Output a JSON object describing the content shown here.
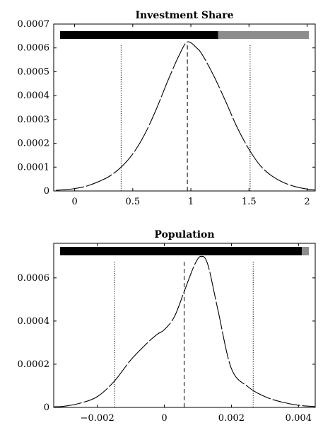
{
  "chart_data": [
    {
      "type": "line",
      "title": "Investment Share",
      "xlabel": "",
      "ylabel": "",
      "xlim": [
        -0.18,
        2.07
      ],
      "ylim": [
        0,
        0.0007
      ],
      "x_ticks": [
        0,
        0.5,
        1,
        1.5,
        2
      ],
      "x_tick_labels": [
        "0",
        "0.5",
        "1",
        "1.5",
        "2"
      ],
      "y_ticks": [
        0,
        0.0001,
        0.0002,
        0.0003,
        0.0004,
        0.0005,
        0.0006,
        0.0007
      ],
      "y_tick_labels": [
        "0",
        "0.0001",
        "0.0002",
        "0.0003",
        "0.0004",
        "0.0005",
        "0.0006",
        "0.0007"
      ],
      "grid": false,
      "series": [
        {
          "line_style": "long-dash",
          "x": [
            -0.16,
            -0.1,
            0.0,
            0.1,
            0.2,
            0.3,
            0.4,
            0.5,
            0.6,
            0.7,
            0.8,
            0.9,
            0.97,
            1.05,
            1.1,
            1.2,
            1.3,
            1.4,
            1.5,
            1.6,
            1.7,
            1.8,
            1.9,
            2.0,
            2.07
          ],
          "y": [
            3e-06,
            5e-06,
            1e-05,
            2e-05,
            3.8e-05,
            6.2e-05,
            0.0001,
            0.000155,
            0.000235,
            0.00034,
            0.00046,
            0.00057,
            0.000625,
            0.0006,
            0.00057,
            0.00048,
            0.000375,
            0.000265,
            0.000175,
            0.000105,
            6.2e-05,
            3.5e-05,
            1.8e-05,
            8e-06,
            4e-06
          ]
        }
      ],
      "vertical_lines": [
        {
          "x": 0.4,
          "style": "dotted"
        },
        {
          "x": 0.97,
          "style": "dashed"
        },
        {
          "x": 1.51,
          "style": "dotted"
        }
      ],
      "share_bar": {
        "split_fraction": 0.635,
        "colors": [
          "#000000",
          "#8c8c8c"
        ]
      }
    },
    {
      "type": "line",
      "title": "Population",
      "xlabel": "",
      "ylabel": "",
      "xlim": [
        -0.0033,
        0.0045
      ],
      "ylim": [
        0,
        0.00076
      ],
      "x_ticks": [
        -0.002,
        0,
        0.002,
        0.004
      ],
      "x_tick_labels": [
        "−0.002",
        "0",
        "0.002",
        "0.004"
      ],
      "y_ticks": [
        0,
        0.0002,
        0.0004,
        0.0006
      ],
      "y_tick_labels": [
        "0",
        "0.0002",
        "0.0004",
        "0.0006"
      ],
      "grid": false,
      "series": [
        {
          "line_style": "long-dash",
          "x": [
            -0.0033,
            -0.003,
            -0.0025,
            -0.002,
            -0.0015,
            -0.001,
            -0.0005,
            -0.0002,
            0.0,
            0.0003,
            0.0006,
            0.0009,
            0.0011,
            0.0013,
            0.0016,
            0.002,
            0.0025,
            0.003,
            0.0035,
            0.004,
            0.0045
          ],
          "y": [
            3e-06,
            5e-06,
            2e-05,
            5e-05,
            0.00012,
            0.00022,
            0.0003,
            0.00034,
            0.00036,
            0.00042,
            0.00054,
            0.00066,
            0.0007,
            0.00066,
            0.00045,
            0.00018,
            9.5e-05,
            5e-05,
            2.5e-05,
            1e-05,
            4e-06
          ]
        }
      ],
      "vertical_lines": [
        {
          "x": -0.00148,
          "style": "dotted"
        },
        {
          "x": 0.00059,
          "style": "dashed"
        },
        {
          "x": 0.00265,
          "style": "dotted"
        }
      ],
      "share_bar": {
        "split_fraction": 0.972,
        "colors": [
          "#000000",
          "#8c8c8c"
        ]
      }
    }
  ]
}
